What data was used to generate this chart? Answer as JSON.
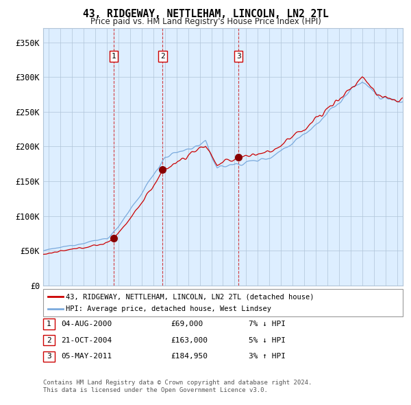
{
  "title": "43, RIDGEWAY, NETTLEHAM, LINCOLN, LN2 2TL",
  "subtitle": "Price paid vs. HM Land Registry's House Price Index (HPI)",
  "legend_line1": "43, RIDGEWAY, NETTLEHAM, LINCOLN, LN2 2TL (detached house)",
  "legend_line2": "HPI: Average price, detached house, West Lindsey",
  "sales": [
    {
      "num": 1,
      "date": "04-AUG-2000",
      "price": 69000,
      "price_str": "£69,000",
      "pct": "7%",
      "dir": "↓",
      "x_year": 2000.58
    },
    {
      "num": 2,
      "date": "21-OCT-2004",
      "price": 163000,
      "price_str": "£163,000",
      "pct": "5%",
      "dir": "↓",
      "x_year": 2004.8
    },
    {
      "num": 3,
      "date": "05-MAY-2011",
      "price": 184950,
      "price_str": "£184,950",
      "pct": "3%",
      "dir": "↑",
      "x_year": 2011.34
    }
  ],
  "footnote1": "Contains HM Land Registry data © Crown copyright and database right 2024.",
  "footnote2": "This data is licensed under the Open Government Licence v3.0.",
  "hpi_color": "#7aaadd",
  "price_color": "#cc0000",
  "bg_color": "#ddeeff",
  "grid_color": "#b0c4d8",
  "ylim": [
    0,
    370000
  ],
  "xlim_start": 1994.5,
  "xlim_end": 2025.5,
  "sale_marker_color": "#880000",
  "y_ticks": [
    0,
    50000,
    100000,
    150000,
    200000,
    250000,
    300000,
    350000
  ],
  "y_labels": [
    "£0",
    "£50K",
    "£100K",
    "£150K",
    "£200K",
    "£250K",
    "£300K",
    "£350K"
  ]
}
